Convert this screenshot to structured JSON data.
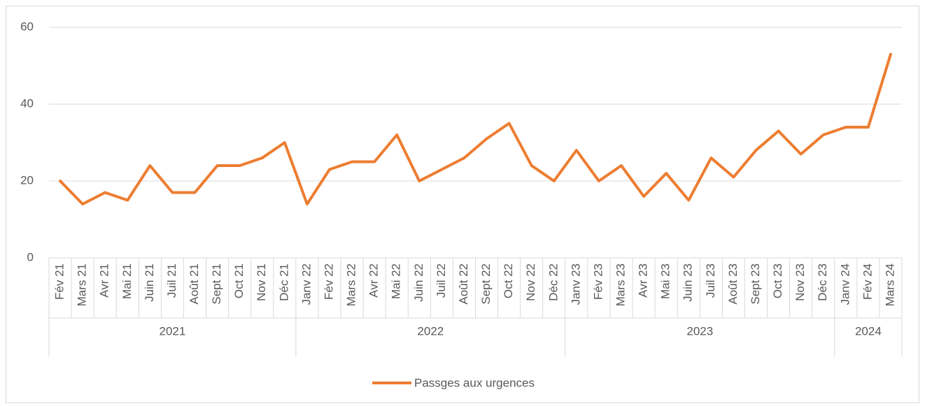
{
  "chart_data": {
    "type": "line",
    "groups": [
      {
        "label": "2021",
        "categories": [
          "Fév 21",
          "Mars 21",
          "Avr 21",
          "Mai 21",
          "Juin 21",
          "Juil 21",
          "Août 21",
          "Sept 21",
          "Oct 21",
          "Nov 21",
          "Déc 21"
        ]
      },
      {
        "label": "2022",
        "categories": [
          "Janv 22",
          "Fév 22",
          "Mars 22",
          "Avr 22",
          "Mai 22",
          "Juin 22",
          "Juil 22",
          "Août 22",
          "Sept 22",
          "Oct 22",
          "Nov 22",
          "Déc 22"
        ]
      },
      {
        "label": "2023",
        "categories": [
          "Janv 23",
          "Fév 23",
          "Mars 23",
          "Avr 23",
          "Mai 23",
          "Juin 23",
          "Juil 23",
          "Août 23",
          "Sept 23",
          "Oct 23",
          "Nov 23",
          "Déc 23"
        ]
      },
      {
        "label": "2024",
        "categories": [
          "Janv 24",
          "Fév 24",
          "Mars 24"
        ]
      }
    ],
    "series": [
      {
        "name": "Passges aux urgences",
        "color": "#ED7D31",
        "values": [
          20,
          14,
          17,
          15,
          24,
          17,
          17,
          24,
          24,
          26,
          30,
          14,
          23,
          25,
          25,
          32,
          20,
          23,
          26,
          31,
          35,
          24,
          20,
          28,
          20,
          24,
          16,
          22,
          15,
          26,
          21,
          28,
          33,
          27,
          32,
          34,
          34,
          53
        ]
      }
    ],
    "ylim": [
      0,
      60
    ],
    "yticks": [
      0,
      20,
      40,
      60
    ],
    "grid": true,
    "legend": "bottom"
  }
}
